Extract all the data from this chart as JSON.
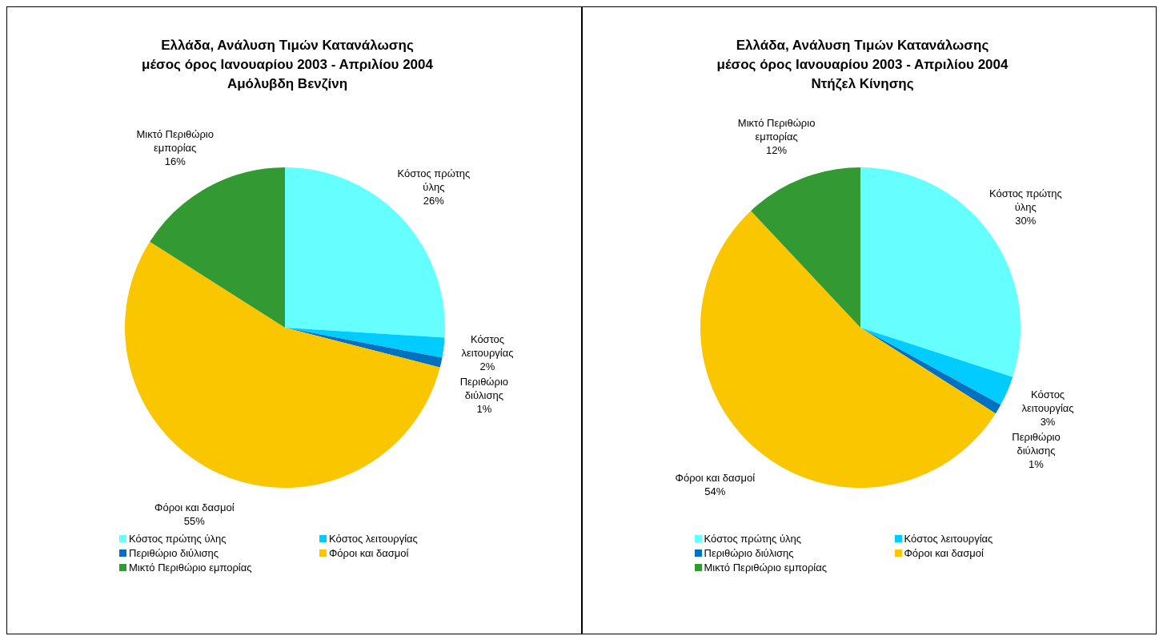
{
  "chart_data": [
    {
      "type": "pie",
      "title": "Ελλάδα, Ανάλυση Τιμών Κατανάλωσης\nμέσος όρος Ιανουαρίου 2003 - Απριλίου 2004\nΑμόλυβδη Βενζίνη",
      "categories": [
        "Κόστος πρώτης ύλης",
        "Κόστος λειτουργίας",
        "Περιθώριο διύλισης",
        "Φόροι και δασμοί",
        "Μικτό Περιθώριο εμπορίας"
      ],
      "values": [
        26,
        2,
        1,
        55,
        16
      ],
      "value_labels": [
        "26%",
        "2%",
        "1%",
        "55%",
        "16%"
      ],
      "colors": [
        "#66ffff",
        "#00ccff",
        "#0070c0",
        "#f9c600",
        "#339933"
      ],
      "legend": "bottom"
    },
    {
      "type": "pie",
      "title": "Ελλάδα, Ανάλυση Τιμών Κατανάλωσης\nμέσος όρος Ιανουαρίου 2003 - Απριλίου 2004\nΝτήζελ Κίνησης",
      "categories": [
        "Κόστος πρώτης ύλης",
        "Κόστος λειτουργίας",
        "Περιθώριο διύλισης",
        "Φόροι και δασμοί",
        "Μικτό Περιθώριο εμπορίας"
      ],
      "values": [
        30,
        3,
        1,
        54,
        12
      ],
      "value_labels": [
        "30%",
        "3%",
        "1%",
        "54%",
        "12%"
      ],
      "colors": [
        "#66ffff",
        "#00ccff",
        "#0070c0",
        "#f9c600",
        "#339933"
      ],
      "legend": "bottom"
    }
  ]
}
